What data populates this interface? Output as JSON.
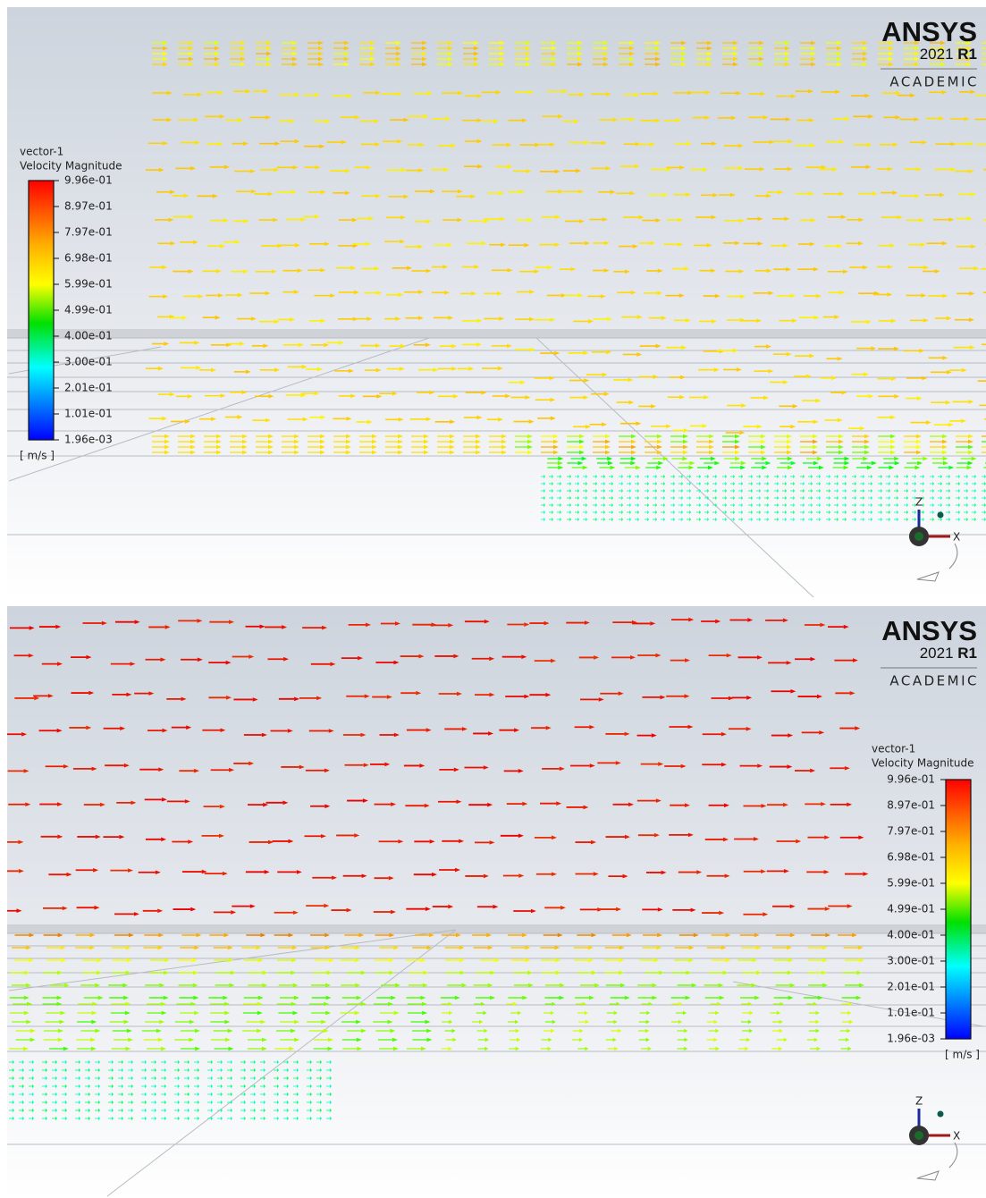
{
  "panels": [
    {
      "logo": {
        "brand": "ANSYS",
        "version": "2021",
        "release": "R1",
        "edition": "ACADEMIC"
      },
      "legend": {
        "name": "vector-1",
        "quantity": "Velocity Magnitude",
        "ticks": [
          "9.96e-01",
          "8.97e-01",
          "7.97e-01",
          "6.98e-01",
          "5.99e-01",
          "4.99e-01",
          "4.00e-01",
          "3.00e-01",
          "2.01e-01",
          "1.01e-01",
          "1.96e-03"
        ],
        "unit": "[ m/s ]"
      },
      "triad": {
        "z": "Z",
        "x": "X"
      }
    },
    {
      "logo": {
        "brand": "ANSYS",
        "version": "2021",
        "release": "R1",
        "edition": "ACADEMIC"
      },
      "legend": {
        "name": "vector-1",
        "quantity": "Velocity Magnitude",
        "ticks": [
          "9.96e-01",
          "8.97e-01",
          "7.97e-01",
          "6.98e-01",
          "5.99e-01",
          "4.99e-01",
          "4.00e-01",
          "3.00e-01",
          "2.01e-01",
          "1.01e-01",
          "1.96e-03"
        ],
        "unit": "[ m/s ]"
      },
      "triad": {
        "z": "Z",
        "x": "X"
      }
    }
  ]
}
